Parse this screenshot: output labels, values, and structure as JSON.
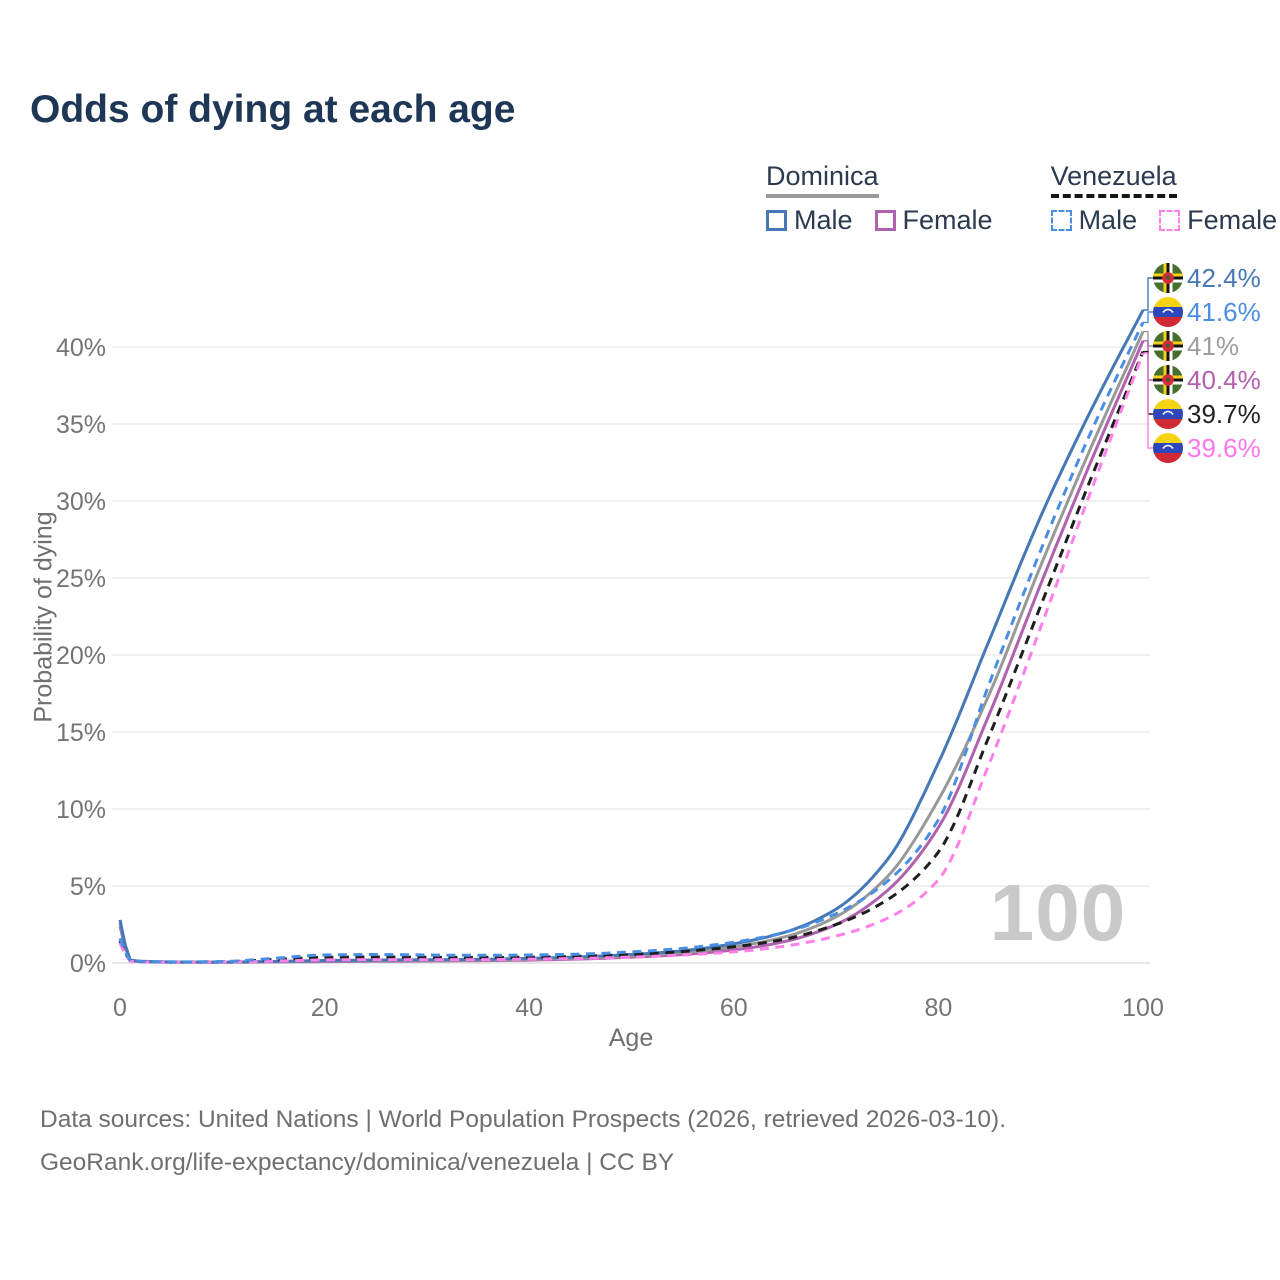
{
  "title": "Odds of dying at each age",
  "legend": {
    "groups": [
      {
        "country": "Dominica",
        "line_style": "solid",
        "underline_color": "#9a9a9a",
        "items": [
          {
            "label": "Male",
            "color": "#4678b6"
          },
          {
            "label": "Female",
            "color": "#b062ae"
          }
        ]
      },
      {
        "country": "Venezuela",
        "line_style": "dashed",
        "underline_color": "#151515",
        "items": [
          {
            "label": "Male",
            "color": "#4a8ee4"
          },
          {
            "label": "Female",
            "color": "#ff80e8"
          }
        ]
      }
    ]
  },
  "chart_data": {
    "type": "line",
    "title": "Odds of dying at each age",
    "xlabel": "Age",
    "ylabel": "Probability of dying",
    "xlim": [
      0,
      100
    ],
    "ylim": [
      0,
      43
    ],
    "x_ticks": [
      0,
      20,
      40,
      60,
      80,
      100
    ],
    "y_ticks": [
      0,
      5,
      10,
      15,
      20,
      25,
      30,
      35,
      40
    ],
    "y_tick_suffix": "%",
    "grid": "horizontal",
    "age_counter_watermark": "100",
    "x": [
      0,
      1,
      2,
      5,
      10,
      15,
      20,
      25,
      30,
      35,
      40,
      45,
      50,
      55,
      60,
      65,
      70,
      75,
      80,
      85,
      90,
      95,
      100
    ],
    "series": [
      {
        "name": "Dominica Male",
        "country": "Dominica",
        "sex": "Male",
        "color": "#4678b6",
        "dash": false,
        "end_label": "42.4%",
        "end_label_color": "#4678b6",
        "values": [
          2.8,
          0.2,
          0.12,
          0.07,
          0.06,
          0.1,
          0.16,
          0.19,
          0.21,
          0.24,
          0.3,
          0.4,
          0.55,
          0.8,
          1.25,
          2.0,
          3.5,
          6.7,
          13.0,
          21.0,
          29.0,
          36.0,
          42.4
        ]
      },
      {
        "name": "Venezuela Male",
        "country": "Venezuela",
        "sex": "Male",
        "color": "#4a8ee4",
        "dash": true,
        "end_label": "41.6%",
        "end_label_color": "#4a8ee4",
        "values": [
          1.6,
          0.16,
          0.1,
          0.07,
          0.09,
          0.3,
          0.52,
          0.55,
          0.52,
          0.5,
          0.52,
          0.58,
          0.72,
          0.95,
          1.35,
          2.0,
          3.2,
          5.3,
          9.3,
          18.2,
          26.8,
          34.6,
          41.6
        ]
      },
      {
        "name": "Dominica",
        "country": "Dominica",
        "sex": "Both",
        "color": "#999999",
        "dash": false,
        "end_label": "41%",
        "end_label_color": "#9e9e9e",
        "values": [
          2.6,
          0.18,
          0.11,
          0.06,
          0.05,
          0.09,
          0.13,
          0.15,
          0.17,
          0.19,
          0.24,
          0.33,
          0.47,
          0.68,
          1.05,
          1.7,
          3.0,
          5.6,
          10.6,
          17.5,
          25.8,
          33.6,
          41.0
        ]
      },
      {
        "name": "Dominica Female",
        "country": "Dominica",
        "sex": "Female",
        "color": "#b062ae",
        "dash": false,
        "end_label": "40.4%",
        "end_label_color": "#b55fb0",
        "values": [
          2.4,
          0.16,
          0.1,
          0.05,
          0.05,
          0.07,
          0.09,
          0.11,
          0.13,
          0.15,
          0.19,
          0.26,
          0.38,
          0.55,
          0.85,
          1.4,
          2.5,
          4.7,
          8.8,
          16.2,
          24.6,
          32.7,
          40.4
        ]
      },
      {
        "name": "Venezuela",
        "country": "Venezuela",
        "sex": "Both",
        "color": "#1f1f1f",
        "dash": true,
        "end_label": "39.7%",
        "end_label_color": "#222222",
        "values": [
          1.45,
          0.14,
          0.09,
          0.06,
          0.08,
          0.22,
          0.37,
          0.39,
          0.37,
          0.36,
          0.38,
          0.44,
          0.55,
          0.75,
          1.05,
          1.55,
          2.5,
          4.1,
          7.2,
          14.8,
          23.2,
          31.6,
          39.7
        ]
      },
      {
        "name": "Venezuela Female",
        "country": "Venezuela",
        "sex": "Female",
        "color": "#ff80e8",
        "dash": true,
        "end_label": "39.6%",
        "end_label_color": "#ff77ea",
        "values": [
          1.3,
          0.12,
          0.08,
          0.05,
          0.06,
          0.12,
          0.2,
          0.22,
          0.22,
          0.22,
          0.25,
          0.3,
          0.38,
          0.52,
          0.72,
          1.1,
          1.75,
          2.9,
          5.4,
          13.0,
          21.8,
          30.8,
          39.6
        ]
      }
    ]
  },
  "flags": {
    "dominica": {
      "field": "#47702f",
      "cross_yellow": "#f7d216",
      "cross_black": "#141414",
      "cross_white": "#ffffff",
      "disc_red": "#d62b39",
      "parrot": "#35622d"
    },
    "venezuela": {
      "yellow": "#f5d213",
      "blue": "#2d46b9",
      "red": "#cf2a36",
      "stars": "#ffffff"
    }
  },
  "footer": {
    "line1": "Data sources: United Nations | World Population Prospects (2026, retrieved 2026-03-10).",
    "line2": "GeoRank.org/life-expectancy/dominica/venezuela | CC BY"
  }
}
